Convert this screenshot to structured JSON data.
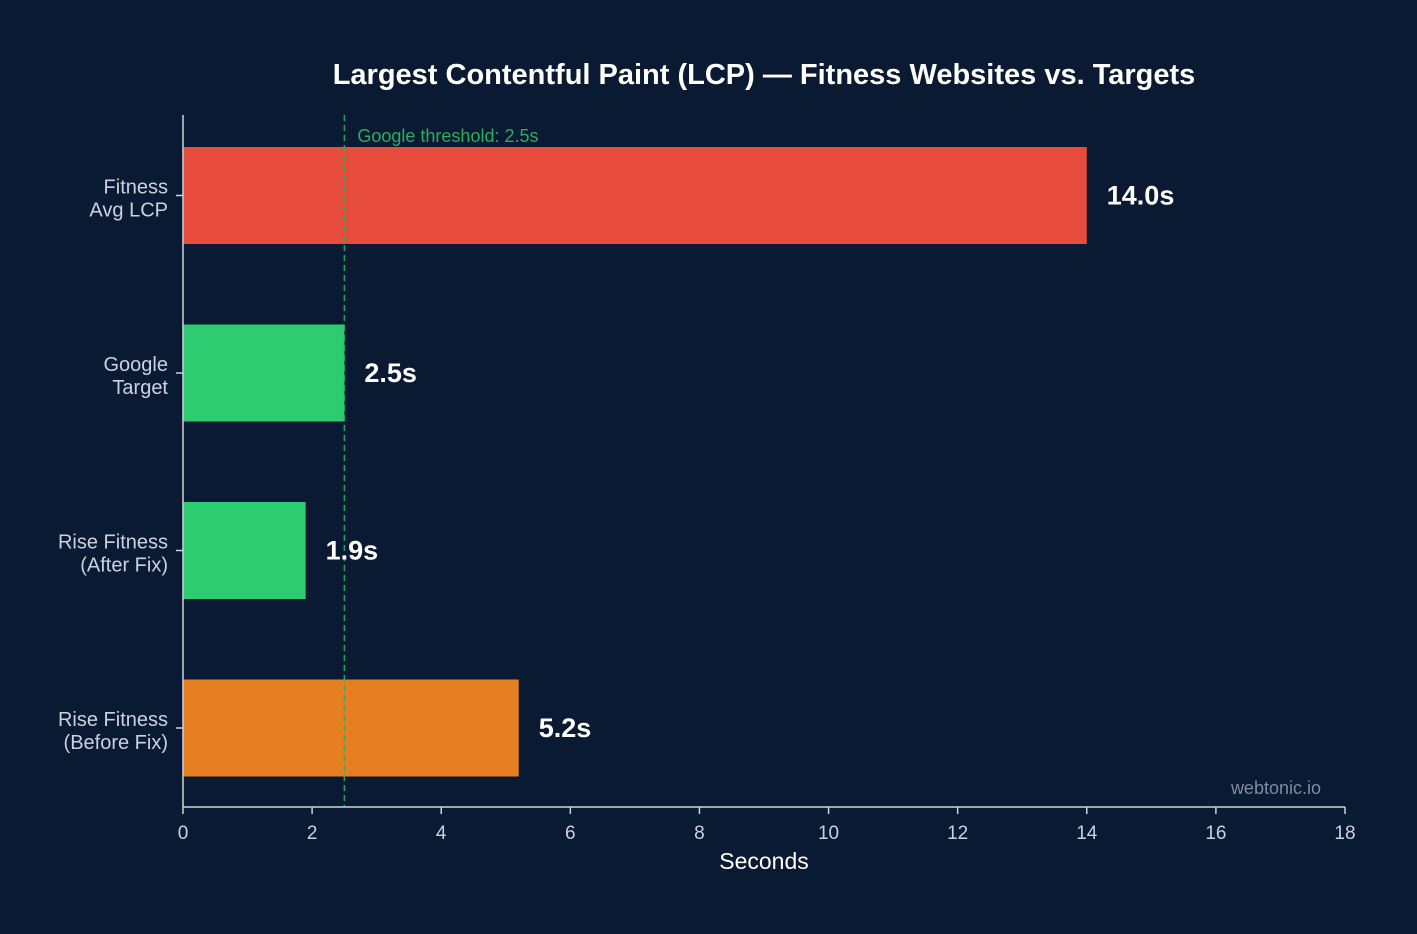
{
  "chart_data": {
    "type": "bar",
    "orientation": "horizontal",
    "title": "Largest Contentful Paint (LCP) — Fitness Websites vs. Targets",
    "xlabel": "Seconds",
    "ylabel": "",
    "xlim": [
      0,
      18
    ],
    "x_ticks": [
      0,
      2,
      4,
      6,
      8,
      10,
      12,
      14,
      16,
      18
    ],
    "grid": false,
    "categories": [
      [
        "Fitness",
        "Avg LCP"
      ],
      [
        "Google",
        "Target"
      ],
      [
        "Rise Fitness",
        "(After Fix)"
      ],
      [
        "Rise Fitness",
        "(Before Fix)"
      ]
    ],
    "values": [
      14.0,
      2.5,
      1.9,
      5.2
    ],
    "value_labels": [
      "14.0s",
      "2.5s",
      "1.9s",
      "5.2s"
    ],
    "colors": [
      "#e74c3c",
      "#2ecc71",
      "#2ecc71",
      "#e67e22"
    ],
    "threshold": {
      "value": 2.5,
      "label": "Google threshold: 2.5s",
      "color": "#27ae60"
    },
    "watermark": "webtonic.io",
    "theme": {
      "background": "#0b1a33",
      "axis_color": "#c9d2df"
    }
  }
}
